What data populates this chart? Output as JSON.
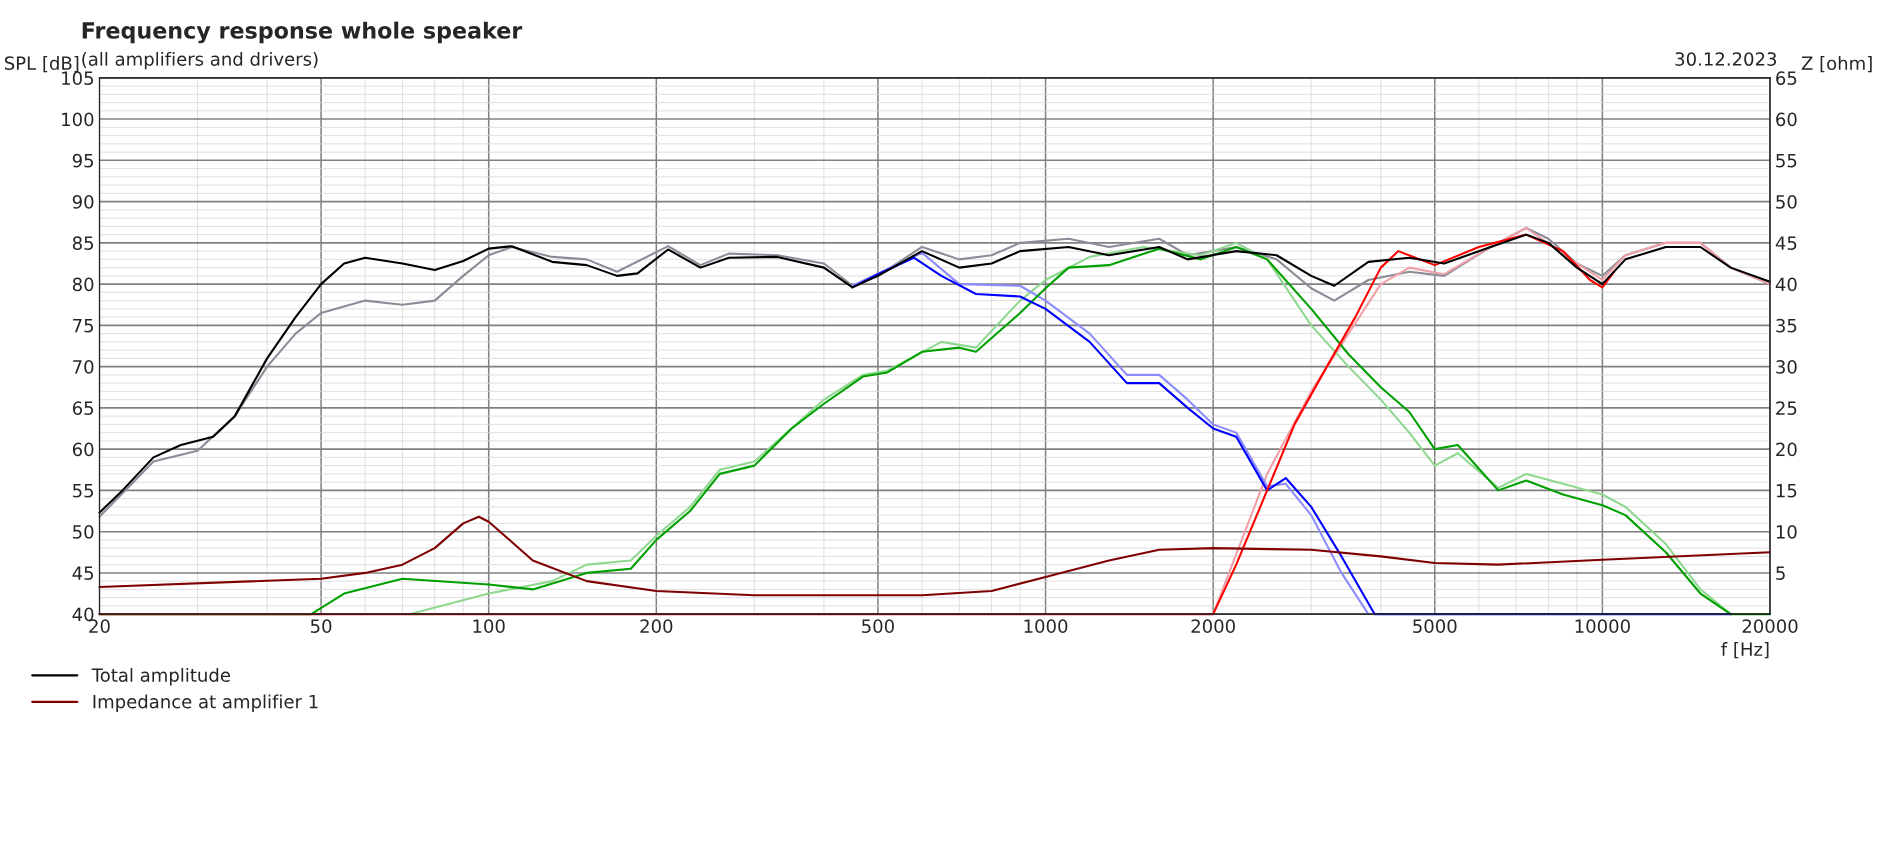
{
  "chart_data": {
    "type": "line",
    "title": "Frequency response whole speaker",
    "subtitle": "(all amplifiers and drivers)",
    "annotations": [
      "30.12.2023"
    ],
    "xlabel": "f [Hz]",
    "ylabel": "SPL [dB]",
    "y2label": "Z [ohm]",
    "log": "x",
    "grid": true,
    "legend": "bottom",
    "marker": "none",
    "line_style": "solid",
    "xlim": [
      20,
      20000
    ],
    "xticks": [
      20,
      50,
      100,
      200,
      500,
      1000,
      2000,
      5000,
      10000,
      20000
    ],
    "ylim": [
      40,
      105
    ],
    "yticks": [
      40,
      45,
      50,
      55,
      60,
      65,
      70,
      75,
      80,
      85,
      90,
      95,
      100,
      105
    ],
    "y2lim": [
      0,
      65
    ],
    "y2ticks": [
      5,
      10,
      15,
      20,
      25,
      30,
      35,
      40,
      45,
      50,
      55,
      60,
      65
    ],
    "series": [
      {
        "color": "#8c8c99",
        "x": [
          20,
          25,
          30,
          35,
          40,
          45,
          50,
          60,
          70,
          80,
          90,
          100,
          110,
          130,
          150,
          170,
          210,
          240,
          270,
          330,
          400,
          450,
          500,
          600,
          700,
          800,
          900,
          1100,
          1300,
          1600,
          1800,
          2200,
          2600,
          3000,
          3300,
          3800,
          4500,
          5200,
          6300,
          7300,
          8000,
          9000,
          10000,
          11000,
          13000,
          15000,
          17000,
          20000
        ],
        "values": [
          51.8,
          58.5,
          59.8,
          64,
          70,
          74,
          76.5,
          78,
          77.5,
          78,
          81,
          83.5,
          84.5,
          83.3,
          83,
          81.5,
          84.6,
          82.3,
          83.7,
          83.5,
          82.5,
          79.8,
          81,
          84.5,
          83,
          83.5,
          85,
          85.5,
          84.5,
          85.5,
          83.5,
          84.5,
          83,
          79.5,
          78,
          80.5,
          81.5,
          81,
          84.5,
          86.8,
          85.5,
          82.5,
          81,
          83.5,
          85,
          85,
          82,
          80
        ]
      },
      {
        "color": "#f0a0a8",
        "x": [
          2000,
          2500,
          3000,
          3500,
          4000,
          4500,
          5200,
          6300,
          7300,
          9000,
          10000,
          11000,
          13000,
          15000,
          17000,
          20000
        ],
        "values": [
          40,
          57,
          67,
          74,
          80,
          82,
          81.2,
          84.5,
          86.8,
          82.5,
          80.5,
          83.5,
          85,
          85,
          82,
          80
        ]
      },
      {
        "color": "#8fd88f",
        "x": [
          72,
          100,
          130,
          150,
          180,
          200,
          230,
          260,
          300,
          400,
          470,
          520,
          650,
          750,
          900,
          1000,
          1200,
          1500,
          1900,
          2200,
          2500,
          3000,
          3500,
          4000,
          4500,
          5000,
          5500,
          6500,
          7300,
          8500,
          10000,
          11000,
          13000,
          15000,
          17000
        ],
        "values": [
          40,
          42.5,
          44,
          46,
          46.5,
          49.5,
          53,
          57.5,
          58.5,
          66,
          69,
          69.5,
          73,
          72.3,
          78,
          80.5,
          83.3,
          84.5,
          83.5,
          85,
          83,
          75,
          70,
          66,
          62,
          58,
          59.5,
          55.3,
          57,
          55.8,
          54.5,
          53,
          48.5,
          43,
          40
        ]
      },
      {
        "color": "#8c8cff",
        "x": [
          450,
          600,
          700,
          900,
          1000,
          1200,
          1400,
          1600,
          1800,
          2000,
          2200,
          2500,
          2700,
          3000,
          3400,
          3800
        ],
        "values": [
          79.8,
          83.8,
          80,
          79.8,
          78,
          74,
          69,
          69,
          66,
          63,
          62,
          55.5,
          55.8,
          52,
          45,
          40
        ]
      },
      {
        "name": "Total amplitude",
        "color": "#000000",
        "x": [
          20,
          22,
          25,
          28,
          32,
          35,
          40,
          45,
          50,
          55,
          60,
          70,
          80,
          90,
          100,
          110,
          130,
          150,
          170,
          185,
          210,
          240,
          270,
          330,
          400,
          450,
          500,
          600,
          700,
          800,
          900,
          1100,
          1300,
          1600,
          1800,
          2200,
          2600,
          3000,
          3300,
          3800,
          4500,
          5200,
          6300,
          7300,
          8000,
          9000,
          10000,
          11000,
          13000,
          15000,
          17000,
          20000
        ],
        "values": [
          52.3,
          55,
          59,
          60.5,
          61.5,
          64,
          71,
          76,
          80,
          82.5,
          83.2,
          82.5,
          81.7,
          82.8,
          84.3,
          84.6,
          82.7,
          82.3,
          81,
          81.3,
          84.2,
          82,
          83.2,
          83.3,
          82,
          79.6,
          81,
          84,
          82,
          82.5,
          84,
          84.5,
          83.5,
          84.5,
          83,
          84,
          83.5,
          81,
          79.8,
          82.7,
          83.2,
          82.5,
          84.5,
          86,
          85,
          82,
          80,
          83,
          84.5,
          84.5,
          82,
          80.3
        ]
      },
      {
        "color": "#00a000",
        "x": [
          20,
          48,
          55,
          70,
          100,
          120,
          150,
          180,
          200,
          230,
          260,
          300,
          350,
          400,
          470,
          520,
          600,
          700,
          750,
          900,
          1000,
          1100,
          1300,
          1600,
          1900,
          2200,
          2500,
          3000,
          3500,
          4000,
          4500,
          5000,
          5500,
          6500,
          7300,
          8500,
          10000,
          11000,
          13000,
          15000,
          17000,
          20000
        ],
        "values": [
          40,
          40,
          42.5,
          44.3,
          43.6,
          43,
          45,
          45.5,
          49,
          52.5,
          57,
          58,
          62.5,
          65.5,
          68.8,
          69.3,
          71.8,
          72.3,
          71.8,
          76.5,
          79.5,
          82,
          82.3,
          84.3,
          83,
          84.5,
          83,
          77,
          71.5,
          67.5,
          64.5,
          60,
          60.5,
          55,
          56.2,
          54.5,
          53.2,
          52,
          47.5,
          42.5,
          40,
          40
        ]
      },
      {
        "color": "#0000ff",
        "x": [
          450,
          500,
          580,
          650,
          750,
          900,
          1000,
          1200,
          1400,
          1600,
          1800,
          2000,
          2200,
          2500,
          2700,
          3000,
          3400,
          3900,
          17000
        ],
        "values": [
          79.6,
          81.2,
          83.2,
          81,
          78.8,
          78.5,
          77,
          73,
          68,
          68,
          65,
          62.5,
          61.5,
          55,
          56.5,
          53,
          47,
          40,
          40
        ]
      },
      {
        "color": "#ff0000",
        "x": [
          20,
          2000,
          2200,
          2500,
          2800,
          3200,
          3600,
          4000,
          4300,
          5000,
          6000,
          7300,
          8500,
          9500,
          10000,
          10500
        ],
        "values": [
          40,
          40,
          46,
          55,
          63,
          70,
          76,
          82,
          84,
          82.3,
          84.5,
          86,
          84,
          80.5,
          79.6,
          81.5
        ]
      },
      {
        "name": "Impedance at amplifier 1",
        "color": "#800000",
        "axis": "y2",
        "x": [
          20,
          50,
          60,
          70,
          80,
          90,
          96,
          100,
          120,
          150,
          200,
          300,
          600,
          800,
          1000,
          1300,
          1600,
          2000,
          3000,
          4000,
          5000,
          6500,
          10000,
          20000
        ],
        "values": [
          3.3,
          4.3,
          5,
          6,
          8,
          11,
          11.8,
          11.2,
          6.5,
          4,
          2.8,
          2.3,
          2.3,
          2.8,
          4.5,
          6.5,
          7.8,
          8,
          7.8,
          7,
          6.2,
          6,
          6.6,
          7.5
        ]
      }
    ]
  }
}
